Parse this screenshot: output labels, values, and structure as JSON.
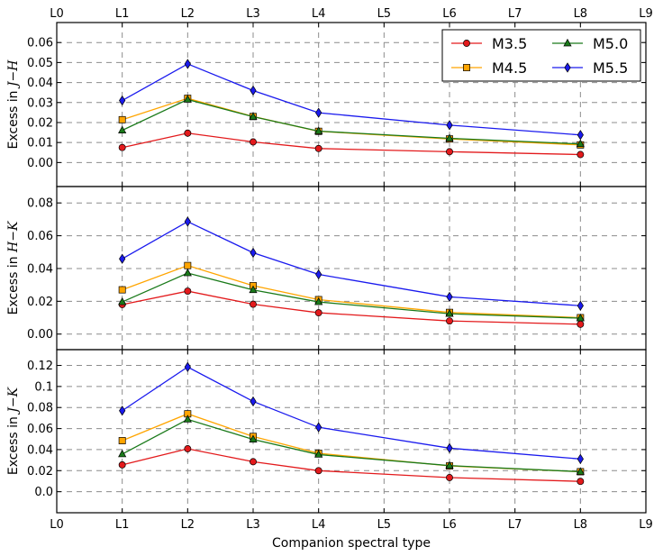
{
  "chart_data": {
    "type": "line",
    "x_tick_labels": [
      "L0",
      "L1",
      "L2",
      "L3",
      "L4",
      "L5",
      "L6",
      "L7",
      "L8",
      "L9"
    ],
    "x_values": [
      1,
      2,
      3,
      4,
      6,
      8
    ],
    "xlim": [
      0,
      9
    ],
    "xlabel": "Companion spectral type",
    "grid": true,
    "legend_position": "top-right",
    "colors": {
      "M3.5": "#e31a1c",
      "M4.5": "#ffa500",
      "M5.0": "#1a7a1a",
      "M5.5": "#1a1aee"
    },
    "panels": [
      {
        "ylabel_prefix": "Excess in ",
        "ylabel_math": "J−H",
        "ylim": [
          -0.012,
          0.07
        ],
        "yticks": [
          0.0,
          0.01,
          0.02,
          0.03,
          0.04,
          0.05,
          0.06
        ],
        "ytick_labels": [
          "0.00",
          "0.01",
          "0.02",
          "0.03",
          "0.04",
          "0.05",
          "0.06"
        ],
        "series": [
          {
            "name": "M3.5",
            "marker": "circle",
            "values": [
              0.0075,
              0.0147,
              0.0103,
              0.007,
              0.0054,
              0.004
            ]
          },
          {
            "name": "M4.5",
            "marker": "square",
            "values": [
              0.0214,
              0.0321,
              0.023,
              0.0156,
              0.0118,
              0.0088
            ]
          },
          {
            "name": "M5.0",
            "marker": "triangle",
            "values": [
              0.0161,
              0.0315,
              0.0229,
              0.0157,
              0.0121,
              0.0093
            ]
          },
          {
            "name": "M5.5",
            "marker": "diamond",
            "values": [
              0.031,
              0.0493,
              0.036,
              0.0249,
              0.0187,
              0.0138
            ]
          }
        ]
      },
      {
        "ylabel_prefix": "Excess in ",
        "ylabel_math": "H−K",
        "ylim": [
          -0.0095,
          0.09
        ],
        "yticks": [
          0.0,
          0.02,
          0.04,
          0.06,
          0.08
        ],
        "ytick_labels": [
          "0.00",
          "0.02",
          "0.04",
          "0.06",
          "0.08"
        ],
        "series": [
          {
            "name": "M3.5",
            "values": [
              0.018,
              0.0262,
              0.0182,
              0.013,
              0.008,
              0.006
            ]
          },
          {
            "name": "M4.5",
            "values": [
              0.027,
              0.0418,
              0.0295,
              0.021,
              0.0132,
              0.01
            ]
          },
          {
            "name": "M5.0",
            "values": [
              0.0196,
              0.0372,
              0.0269,
              0.0196,
              0.0124,
              0.0097
            ]
          },
          {
            "name": "M5.5",
            "values": [
              0.0459,
              0.0686,
              0.0496,
              0.0364,
              0.0227,
              0.0173
            ]
          }
        ]
      },
      {
        "ylabel_prefix": "Excess in ",
        "ylabel_math": "J−K",
        "ylim": [
          -0.02,
          0.135
        ],
        "yticks": [
          0.0,
          0.02,
          0.04,
          0.06,
          0.08,
          0.1,
          0.12
        ],
        "ytick_labels": [
          "0.0",
          "0.02",
          "0.04",
          "0.06",
          "0.08",
          "0.1",
          "0.12"
        ],
        "series": [
          {
            "name": "M3.5",
            "values": [
              0.0255,
              0.0408,
              0.0285,
              0.02,
              0.0134,
              0.0098
            ]
          },
          {
            "name": "M4.5",
            "values": [
              0.0485,
              0.074,
              0.0525,
              0.0365,
              0.0245,
              0.019
            ]
          },
          {
            "name": "M5.0",
            "values": [
              0.0357,
              0.0687,
              0.0497,
              0.0353,
              0.0248,
              0.019
            ]
          },
          {
            "name": "M5.5",
            "values": [
              0.077,
              0.1185,
              0.0858,
              0.0612,
              0.0414,
              0.0311
            ]
          }
        ]
      }
    ]
  }
}
